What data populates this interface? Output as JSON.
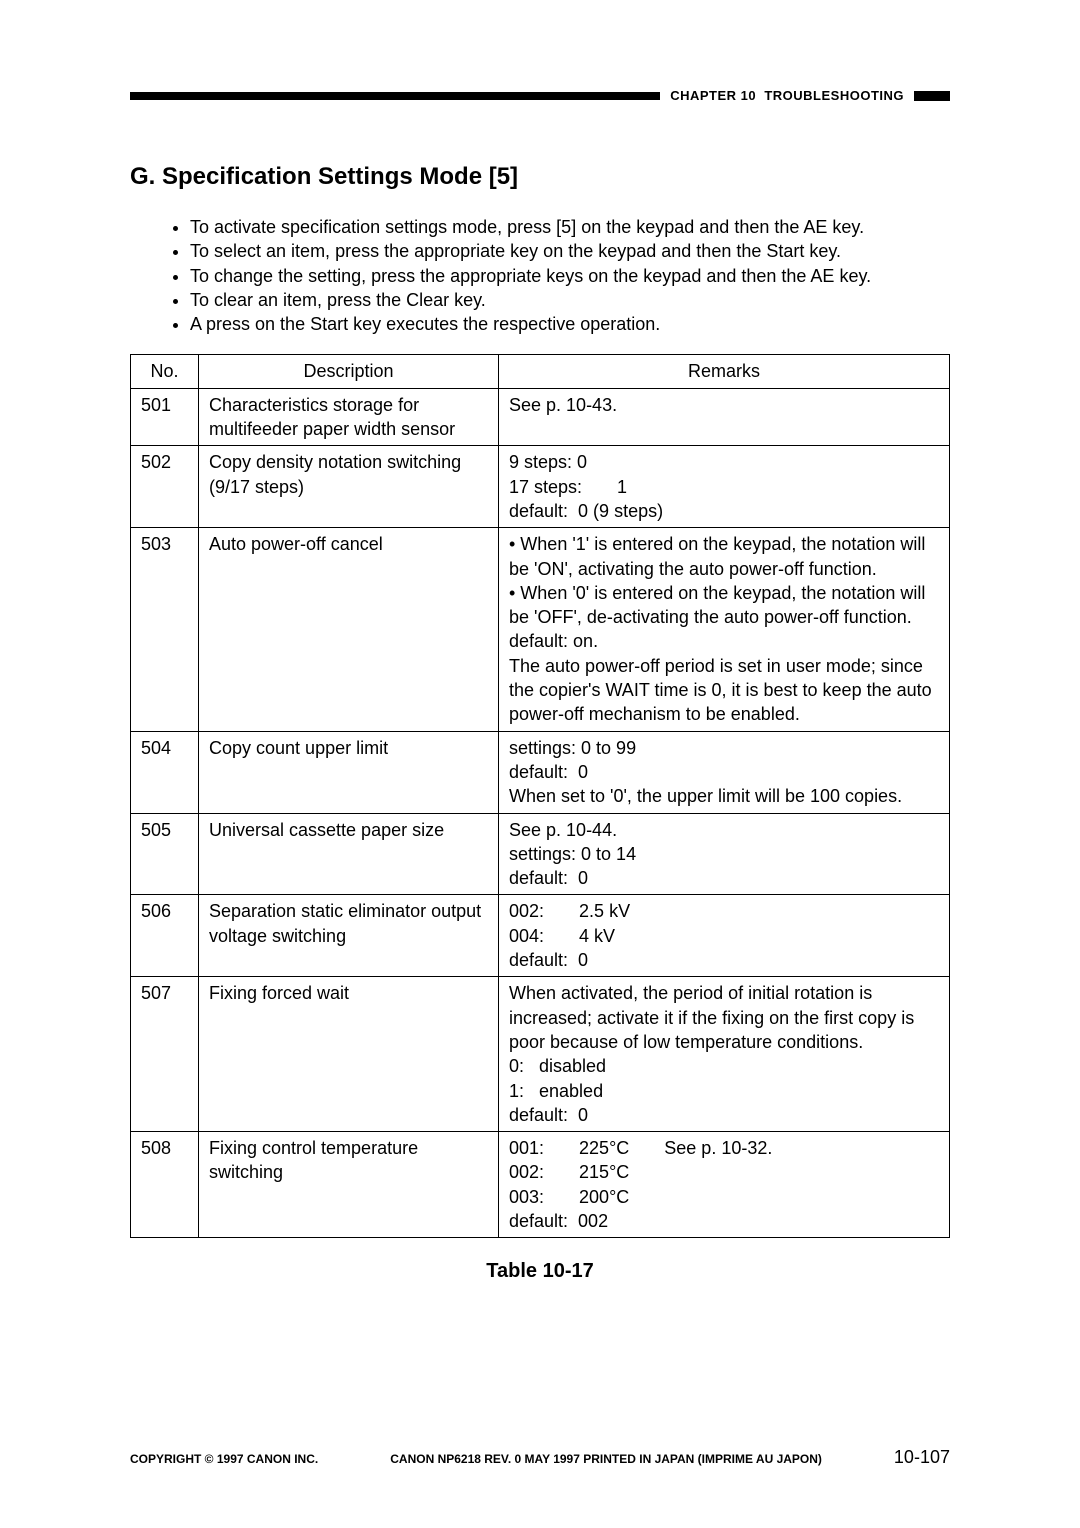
{
  "header": {
    "chapter": "CHAPTER 10  TROUBLESHOOTING"
  },
  "section": {
    "title": "G. Specification Settings Mode [5]"
  },
  "bullets": [
    "To activate specification settings mode, press [5] on the keypad and then the AE key.",
    "To select an item, press the appropriate key on the keypad and then the Start key.",
    "To change the setting, press the appropriate keys on the keypad and then the AE key.",
    "To clear an item, press the Clear key.",
    "A press on the Start key executes the respective operation."
  ],
  "table": {
    "columns": [
      "No.",
      "Description",
      "Remarks"
    ],
    "rows": [
      {
        "no": "501",
        "desc": "Characteristics storage for multifeeder paper width sensor",
        "remarks": "See p. 10-43."
      },
      {
        "no": "502",
        "desc": "Copy density notation switching (9/17 steps)",
        "remarks": "9 steps: 0\n17 steps:       1\ndefault:  0 (9 steps)"
      },
      {
        "no": "503",
        "desc": "Auto power-off cancel",
        "remarks": "• When '1' is entered on the keypad, the notation will be 'ON', activating the auto power-off function.\n• When '0' is entered on the keypad, the notation will be 'OFF', de-activating the auto power-off function.\ndefault: on.\nThe auto power-off period is set in user mode; since the copier's WAIT time is 0, it is best to keep the auto power-off mechanism to be enabled."
      },
      {
        "no": "504",
        "desc": "Copy count upper limit",
        "remarks": "settings: 0 to 99\ndefault:  0\nWhen set to '0', the upper limit will be 100 copies."
      },
      {
        "no": "505",
        "desc": "Universal cassette paper size",
        "remarks": "See p. 10-44.\nsettings: 0 to 14\ndefault:  0"
      },
      {
        "no": "506",
        "desc": "Separation static eliminator output voltage switching",
        "remarks": "002:       2.5 kV\n004:       4 kV\ndefault:  0"
      },
      {
        "no": "507",
        "desc": "Fixing forced wait",
        "remarks": "When activated, the period of initial rotation is increased; activate it if the fixing on the first copy is poor because of low temperature conditions.\n0:   disabled\n1:   enabled\ndefault:  0"
      },
      {
        "no": "508",
        "desc": "Fixing control temperature switching",
        "remarks": "001:       225°C       See p. 10-32.\n002:       215°C\n003:       200°C\ndefault:  002"
      }
    ],
    "caption": "Table 10-17"
  },
  "footer": {
    "copyright": "COPYRIGHT © 1997 CANON INC.",
    "printline": "CANON NP6218 REV. 0 MAY 1997 PRINTED IN JAPAN (IMPRIME AU JAPON)",
    "pageno": "10-107"
  }
}
